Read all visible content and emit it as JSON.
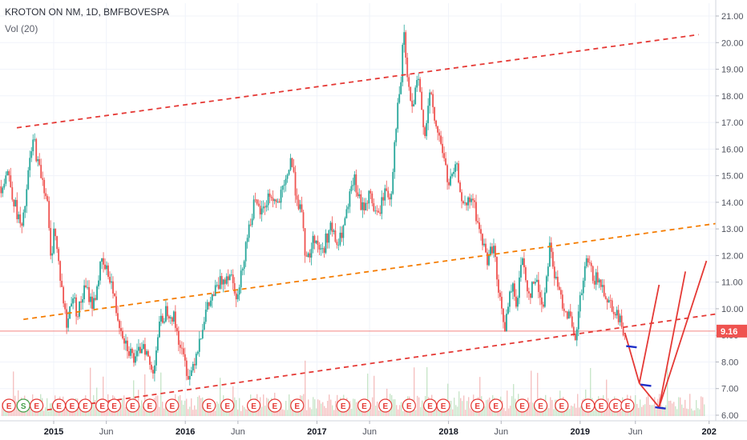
{
  "chart_data": {
    "type": "line",
    "title": "KROTON ON NM, 1D, BMFBOVESPA",
    "indicator": "Vol (20)",
    "last_price_label": "9.16",
    "last_price": 9.16,
    "ylim": [
      6.0,
      21.0
    ],
    "y_ticks": [
      "21.00",
      "20.00",
      "19.00",
      "18.00",
      "17.00",
      "16.00",
      "15.00",
      "14.00",
      "13.00",
      "12.00",
      "11.00",
      "10.00",
      "9.00",
      "8.00",
      "7.00",
      "6.00"
    ],
    "y_tick_values": [
      21,
      20,
      19,
      18,
      17,
      16,
      15,
      14,
      13,
      12,
      11,
      10,
      9,
      8,
      7,
      6
    ],
    "x_range": [
      2014.6,
      2020.03
    ],
    "x_ticks": [
      {
        "label": "2015",
        "t": 2015.0,
        "bold": true
      },
      {
        "label": "Jun",
        "t": 2015.4,
        "bold": false
      },
      {
        "label": "2016",
        "t": 2016.0,
        "bold": true
      },
      {
        "label": "Jun",
        "t": 2016.4,
        "bold": false
      },
      {
        "label": "2017",
        "t": 2017.0,
        "bold": true
      },
      {
        "label": "Jun",
        "t": 2017.4,
        "bold": false
      },
      {
        "label": "2018",
        "t": 2018.0,
        "bold": true
      },
      {
        "label": "Jun",
        "t": 2018.4,
        "bold": false
      },
      {
        "label": "2019",
        "t": 2019.0,
        "bold": true
      },
      {
        "label": "Jun",
        "t": 2019.42,
        "bold": false
      },
      {
        "label": "202",
        "t": 2019.98,
        "bold": true
      }
    ],
    "price_series": {
      "name": "",
      "points": [
        [
          2014.6,
          14.6
        ],
        [
          2014.65,
          15.2
        ],
        [
          2014.7,
          14.0
        ],
        [
          2014.76,
          12.9
        ],
        [
          2014.82,
          15.6
        ],
        [
          2014.85,
          16.4
        ],
        [
          2014.88,
          15.4
        ],
        [
          2014.91,
          15.0
        ],
        [
          2014.95,
          14.1
        ],
        [
          2014.98,
          11.6
        ],
        [
          2015.0,
          13.2
        ],
        [
          2015.05,
          11.2
        ],
        [
          2015.1,
          9.3
        ],
        [
          2015.14,
          10.6
        ],
        [
          2015.18,
          9.8
        ],
        [
          2015.24,
          10.8
        ],
        [
          2015.3,
          10.1
        ],
        [
          2015.36,
          11.7
        ],
        [
          2015.43,
          11.2
        ],
        [
          2015.48,
          9.8
        ],
        [
          2015.55,
          8.7
        ],
        [
          2015.62,
          8.0
        ],
        [
          2015.68,
          8.8
        ],
        [
          2015.75,
          7.5
        ],
        [
          2015.8,
          9.3
        ],
        [
          2015.86,
          10.0
        ],
        [
          2015.91,
          9.7
        ],
        [
          2015.97,
          8.4
        ],
        [
          2016.03,
          7.4
        ],
        [
          2016.09,
          8.5
        ],
        [
          2016.15,
          9.8
        ],
        [
          2016.22,
          10.6
        ],
        [
          2016.28,
          11.1
        ],
        [
          2016.34,
          11.4
        ],
        [
          2016.4,
          10.4
        ],
        [
          2016.46,
          12.5
        ],
        [
          2016.52,
          13.9
        ],
        [
          2016.58,
          13.6
        ],
        [
          2016.64,
          14.3
        ],
        [
          2016.7,
          13.9
        ],
        [
          2016.76,
          14.6
        ],
        [
          2016.8,
          15.7
        ],
        [
          2016.84,
          14.4
        ],
        [
          2016.88,
          13.6
        ],
        [
          2016.92,
          11.7
        ],
        [
          2016.98,
          12.7
        ],
        [
          2017.04,
          12.1
        ],
        [
          2017.1,
          13.1
        ],
        [
          2017.16,
          12.3
        ],
        [
          2017.22,
          13.4
        ],
        [
          2017.28,
          14.9
        ],
        [
          2017.34,
          13.7
        ],
        [
          2017.4,
          14.3
        ],
        [
          2017.46,
          13.4
        ],
        [
          2017.52,
          14.5
        ],
        [
          2017.56,
          14.1
        ],
        [
          2017.6,
          16.9
        ],
        [
          2017.64,
          18.6
        ],
        [
          2017.66,
          20.6
        ],
        [
          2017.68,
          19.0
        ],
        [
          2017.72,
          17.4
        ],
        [
          2017.77,
          18.6
        ],
        [
          2017.82,
          16.6
        ],
        [
          2017.86,
          18.1
        ],
        [
          2017.9,
          16.9
        ],
        [
          2017.95,
          16.1
        ],
        [
          2018.0,
          14.6
        ],
        [
          2018.06,
          15.3
        ],
        [
          2018.12,
          13.7
        ],
        [
          2018.18,
          14.2
        ],
        [
          2018.24,
          12.8
        ],
        [
          2018.3,
          11.8
        ],
        [
          2018.34,
          12.5
        ],
        [
          2018.38,
          10.5
        ],
        [
          2018.43,
          9.3
        ],
        [
          2018.48,
          10.9
        ],
        [
          2018.52,
          10.2
        ],
        [
          2018.56,
          12.0
        ],
        [
          2018.61,
          10.5
        ],
        [
          2018.66,
          11.1
        ],
        [
          2018.72,
          10.1
        ],
        [
          2018.77,
          12.5
        ],
        [
          2018.81,
          11.1
        ],
        [
          2018.86,
          10.3
        ],
        [
          2018.92,
          9.7
        ],
        [
          2018.96,
          8.6
        ],
        [
          2019.0,
          10.3
        ],
        [
          2019.05,
          11.8
        ],
        [
          2019.1,
          11.2
        ],
        [
          2019.16,
          10.9
        ],
        [
          2019.22,
          10.3
        ],
        [
          2019.28,
          9.8
        ],
        [
          2019.31,
          9.4
        ],
        [
          2019.34,
          9.16
        ]
      ]
    },
    "trend_lines": [
      {
        "name": "",
        "color": "#e53935",
        "dashed": true,
        "from": [
          2014.72,
          16.8
        ],
        "to": [
          2019.9,
          20.3
        ]
      },
      {
        "name": "",
        "color": "#f57c00",
        "dashed": true,
        "from": [
          2014.77,
          9.6
        ],
        "to": [
          2020.03,
          13.2
        ]
      },
      {
        "name": "",
        "color": "#e53935",
        "dashed": true,
        "from": [
          2014.95,
          6.2
        ],
        "to": [
          2020.03,
          9.8
        ]
      }
    ],
    "projection_lines": [
      {
        "color": "#e53935",
        "points": [
          [
            2019.34,
            9.1
          ],
          [
            2019.45,
            7.2
          ]
        ]
      },
      {
        "color": "#e53935",
        "points": [
          [
            2019.45,
            7.2
          ],
          [
            2019.6,
            10.9
          ]
        ]
      },
      {
        "color": "#e53935",
        "points": [
          [
            2019.45,
            7.2
          ],
          [
            2019.6,
            6.3
          ]
        ]
      },
      {
        "color": "#e53935",
        "points": [
          [
            2019.6,
            6.3
          ],
          [
            2019.8,
            11.4
          ]
        ]
      },
      {
        "color": "#e53935",
        "points": [
          [
            2019.6,
            6.3
          ],
          [
            2019.96,
            11.8
          ]
        ]
      }
    ],
    "marker_lines": [
      {
        "color": "#1e2fc8",
        "from": [
          2019.35,
          8.6
        ],
        "to": [
          2019.43,
          8.55
        ]
      },
      {
        "color": "#1e2fc8",
        "from": [
          2019.46,
          7.15
        ],
        "to": [
          2019.54,
          7.1
        ]
      },
      {
        "color": "#1e2fc8",
        "from": [
          2019.57,
          6.3
        ],
        "to": [
          2019.65,
          6.25
        ]
      }
    ],
    "price_level_line": {
      "value": 9.16,
      "color": "#ef5350"
    },
    "event_markers": [
      {
        "label": "E",
        "t": 2014.66,
        "color": "#e53935"
      },
      {
        "label": "S",
        "t": 2014.77,
        "color": "#43a047"
      },
      {
        "label": "E",
        "t": 2014.87,
        "color": "#e53935"
      },
      {
        "label": "E",
        "t": 2015.04,
        "color": "#e53935"
      },
      {
        "label": "E",
        "t": 2015.14,
        "color": "#e53935"
      },
      {
        "label": "E",
        "t": 2015.24,
        "color": "#e53935"
      },
      {
        "label": "E",
        "t": 2015.37,
        "color": "#e53935"
      },
      {
        "label": "E",
        "t": 2015.46,
        "color": "#e53935"
      },
      {
        "label": "E",
        "t": 2015.6,
        "color": "#e53935"
      },
      {
        "label": "E",
        "t": 2015.73,
        "color": "#e53935"
      },
      {
        "label": "E",
        "t": 2015.9,
        "color": "#e53935"
      },
      {
        "label": "E",
        "t": 2016.18,
        "color": "#e53935"
      },
      {
        "label": "E",
        "t": 2016.32,
        "color": "#e53935"
      },
      {
        "label": "E",
        "t": 2016.52,
        "color": "#e53935"
      },
      {
        "label": "E",
        "t": 2016.68,
        "color": "#e53935"
      },
      {
        "label": "E",
        "t": 2016.85,
        "color": "#e53935"
      },
      {
        "label": "E",
        "t": 2017.2,
        "color": "#e53935"
      },
      {
        "label": "E",
        "t": 2017.36,
        "color": "#e53935"
      },
      {
        "label": "E",
        "t": 2017.52,
        "color": "#e53935"
      },
      {
        "label": "E",
        "t": 2017.7,
        "color": "#e53935"
      },
      {
        "label": "E",
        "t": 2017.86,
        "color": "#e53935"
      },
      {
        "label": "E",
        "t": 2017.96,
        "color": "#e53935"
      },
      {
        "label": "E",
        "t": 2018.22,
        "color": "#e53935"
      },
      {
        "label": "E",
        "t": 2018.36,
        "color": "#e53935"
      },
      {
        "label": "E",
        "t": 2018.56,
        "color": "#e53935"
      },
      {
        "label": "E",
        "t": 2018.7,
        "color": "#e53935"
      },
      {
        "label": "E",
        "t": 2018.86,
        "color": "#e53935"
      },
      {
        "label": "E",
        "t": 2019.06,
        "color": "#e53935"
      },
      {
        "label": "E",
        "t": 2019.16,
        "color": "#e53935"
      },
      {
        "label": "E",
        "t": 2019.27,
        "color": "#e53935"
      },
      {
        "label": "E",
        "t": 2019.36,
        "color": "#e53935"
      }
    ]
  }
}
